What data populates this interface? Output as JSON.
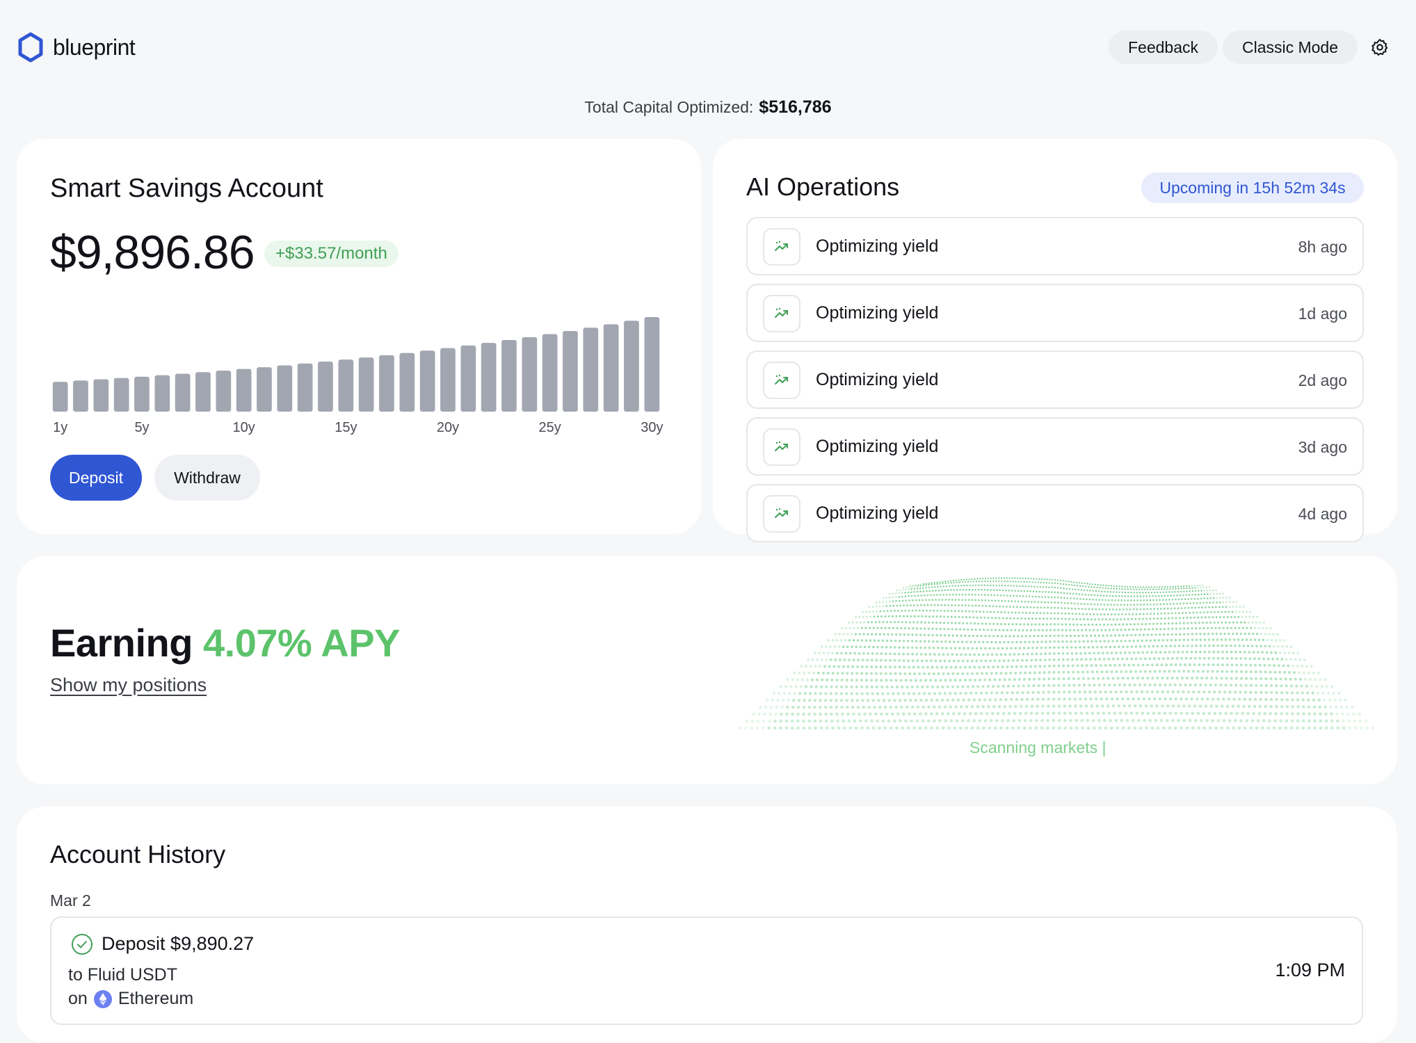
{
  "header": {
    "brand": "blueprint",
    "feedback_label": "Feedback",
    "classic_mode_label": "Classic Mode",
    "settings_icon": "gear-icon"
  },
  "total": {
    "label": "Total Capital Optimized:",
    "value": "$516,786"
  },
  "savings": {
    "title": "Smart Savings Account",
    "balance": "$9,896.86",
    "monthly": "+$33.57/month",
    "deposit_label": "Deposit",
    "withdraw_label": "Withdraw"
  },
  "chart_data": {
    "type": "bar",
    "categories": [
      "1y",
      "2y",
      "3y",
      "4y",
      "5y",
      "6y",
      "7y",
      "8y",
      "9y",
      "10y",
      "11y",
      "12y",
      "13y",
      "14y",
      "15y",
      "16y",
      "17y",
      "18y",
      "19y",
      "20y",
      "21y",
      "22y",
      "23y",
      "24y",
      "25y",
      "26y",
      "27y",
      "28y",
      "29y",
      "30y"
    ],
    "tick_labels": [
      "1y",
      "5y",
      "10y",
      "15y",
      "20y",
      "25y",
      "30y"
    ],
    "values": [
      10300,
      10720,
      11160,
      11610,
      12080,
      12570,
      13080,
      13610,
      14160,
      14740,
      15340,
      15960,
      16610,
      17280,
      17980,
      18710,
      19470,
      20260,
      21080,
      21940,
      22830,
      23750,
      24720,
      25720,
      26760,
      27850,
      28980,
      30150,
      31380,
      32650
    ],
    "color": "#a2a6b0",
    "grid": false
  },
  "ops": {
    "title": "AI Operations",
    "badge": "Upcoming in 15h 52m 34s",
    "items": [
      {
        "label": "Optimizing yield",
        "time": "8h ago"
      },
      {
        "label": "Optimizing yield",
        "time": "1d ago"
      },
      {
        "label": "Optimizing yield",
        "time": "2d ago"
      },
      {
        "label": "Optimizing yield",
        "time": "3d ago"
      },
      {
        "label": "Optimizing yield",
        "time": "4d ago"
      }
    ],
    "icon": "trending-up-icon"
  },
  "apy": {
    "prefix": "Earning",
    "rate": "4.07% APY",
    "positions_link": "Show my positions",
    "scanning": "Scanning markets |",
    "accent": "#5cc36b"
  },
  "history": {
    "title": "Account History",
    "date": "Mar 2",
    "entry": {
      "title": "Deposit $9,890.27",
      "to": "to Fluid USDT",
      "on": "on",
      "network": "Ethereum",
      "time": "1:09 PM"
    }
  },
  "colors": {
    "primary": "#2f56d3",
    "success": "#3f9f55",
    "background": "#f6f7f9"
  }
}
